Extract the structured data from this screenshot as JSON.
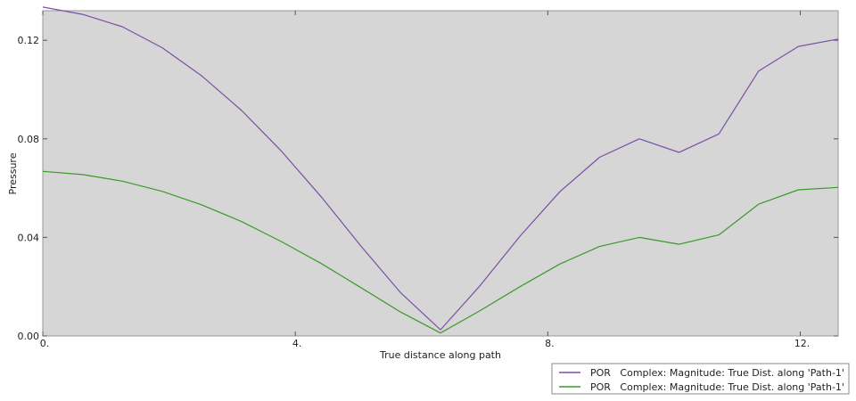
{
  "chart_data": {
    "type": "line",
    "title": "",
    "xlabel": "True distance along path",
    "ylabel": "Pressure",
    "xlim": [
      0,
      12.6
    ],
    "ylim": [
      0,
      0.132
    ],
    "xticks": [
      0,
      4,
      8,
      12
    ],
    "xtick_labels": [
      "0.",
      "4.",
      "8.",
      "12."
    ],
    "yticks": [
      0,
      0.04,
      0.08,
      0.12
    ],
    "ytick_labels": [
      "0.00",
      "0.04",
      "0.08",
      "0.12"
    ],
    "grid": false,
    "background": "#d6d6d6",
    "legend_position": "bottom-right",
    "series": [
      {
        "name": "POR   Complex: Magnitude: True Dist. along 'Path-1'",
        "color": "#7b4fa6",
        "x": [
          0,
          0.63,
          1.26,
          1.89,
          2.52,
          3.15,
          3.78,
          4.41,
          5.04,
          5.67,
          6.3,
          6.93,
          7.56,
          8.19,
          8.82,
          9.45,
          10.08,
          10.71,
          11.34,
          11.97,
          12.6
        ],
        "y": [
          0.1335,
          0.1305,
          0.1255,
          0.117,
          0.1055,
          0.0915,
          0.075,
          0.0565,
          0.0365,
          0.0175,
          0.0025,
          0.0205,
          0.0405,
          0.0585,
          0.0725,
          0.08,
          0.0745,
          0.082,
          0.1075,
          0.1175,
          0.1205
        ]
      },
      {
        "name": "POR   Complex: Magnitude: True Dist. along 'Path-1'",
        "color": "#3a9a2a",
        "x": [
          0,
          0.63,
          1.26,
          1.89,
          2.52,
          3.15,
          3.78,
          4.41,
          5.04,
          5.67,
          6.3,
          6.93,
          7.56,
          8.19,
          8.82,
          9.45,
          10.08,
          10.71,
          11.34,
          11.97,
          12.6
        ],
        "y": [
          0.0668,
          0.0655,
          0.0628,
          0.0587,
          0.0532,
          0.0464,
          0.0383,
          0.0294,
          0.0196,
          0.0097,
          0.0012,
          0.0103,
          0.02,
          0.0292,
          0.0363,
          0.04,
          0.0372,
          0.041,
          0.0535,
          0.0593,
          0.0603
        ]
      }
    ]
  }
}
